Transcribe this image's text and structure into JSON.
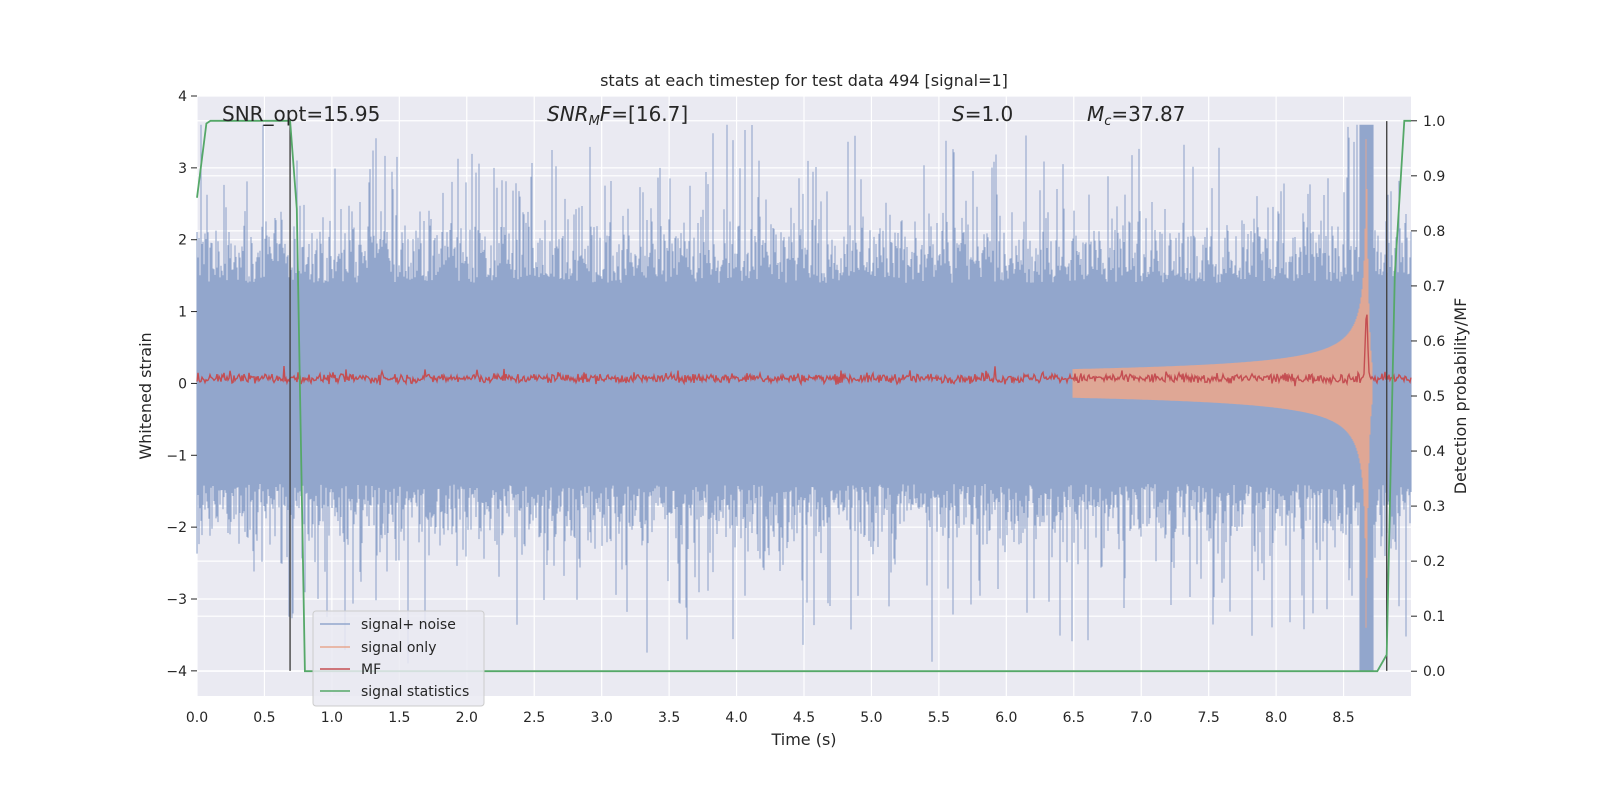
{
  "chart_data": {
    "type": "line",
    "title": "stats at each timestep for test data 494 [signal=1]",
    "xlabel": "Time (s)",
    "ylabel": "Whitened strain",
    "ylabel_right": "Detection probability/MF",
    "xlim": [
      0.0,
      9.0
    ],
    "ylim": [
      -4.35,
      4.0
    ],
    "ylim_right": [
      -0.045,
      1.045
    ],
    "x_ticks": [
      "0.0",
      "0.5",
      "1.0",
      "1.5",
      "2.0",
      "2.5",
      "3.0",
      "3.5",
      "4.0",
      "4.5",
      "5.0",
      "5.5",
      "6.0",
      "6.5",
      "7.0",
      "7.5",
      "8.0",
      "8.5"
    ],
    "y_ticks": [
      "4",
      "3",
      "2",
      "1",
      "0",
      "−1",
      "−2",
      "−3",
      "−4"
    ],
    "y_right_ticks": [
      "1.0",
      "0.9",
      "0.8",
      "0.7",
      "0.6",
      "0.5",
      "0.4",
      "0.3",
      "0.2",
      "0.1",
      "0.0"
    ],
    "grid": true,
    "legend_position": "lower-left",
    "annotations": {
      "snr_opt": "SNR_opt=15.95",
      "snr_mf_sym": "SNR",
      "snr_mf_sub": "M",
      "snr_mf_sym2": "F",
      "snr_mf_val": "=[16.7]",
      "s_sym": "S",
      "s_val": "=1.0",
      "mc_sym": "M",
      "mc_sub": "c",
      "mc_val": "=37.87"
    },
    "vlines_x": [
      0.69,
      8.82
    ],
    "series": [
      {
        "name": "signal+ noise",
        "color": "#92a6cc",
        "kind": "noise",
        "amplitude_typical": 1.4,
        "amplitude_peak": 3.6
      },
      {
        "name": "signal only",
        "color": "#e8a78f",
        "kind": "chirp",
        "merger_time": 8.67,
        "peak_amplitude": 3.4
      },
      {
        "name": "MF",
        "color": "#c44e52",
        "kind": "mf",
        "baseline": 0.07,
        "peak_time": 8.67,
        "peak_value": 0.97
      },
      {
        "name": "signal statistics",
        "color": "#55a868",
        "axis": "right",
        "x": [
          0.0,
          0.07,
          0.1,
          0.2,
          0.3,
          0.4,
          0.5,
          0.6,
          0.69,
          0.74,
          0.8,
          0.85,
          1.0,
          2.0,
          3.0,
          4.0,
          5.0,
          6.0,
          7.0,
          8.0,
          8.5,
          8.75,
          8.82,
          8.88,
          8.95,
          9.0
        ],
        "y": [
          0.86,
          0.995,
          1.0,
          1.0,
          1.0,
          1.0,
          1.0,
          1.0,
          1.0,
          0.84,
          0.0,
          0.0,
          0.0,
          0.0,
          0.0,
          0.0,
          0.0,
          0.0,
          0.0,
          0.0,
          0.0,
          0.0,
          0.03,
          0.72,
          1.0,
          1.0
        ]
      }
    ]
  }
}
